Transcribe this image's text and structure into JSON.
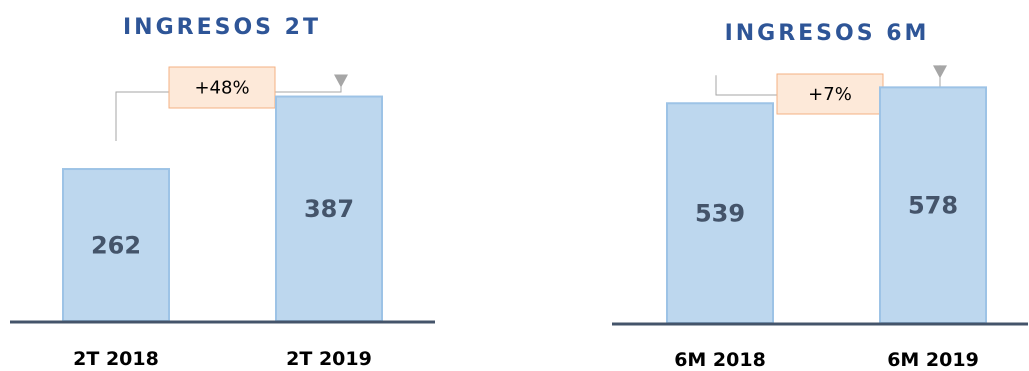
{
  "colors": {
    "title": "#2E5597",
    "bar_fill": "#BDD7EE",
    "bar_stroke": "#9DC3E6",
    "bar_text": "#44546A",
    "axis": "#44546A",
    "category_text": "#000000",
    "connector": "#A6A6A6",
    "delta_fill": "#FDE9D9",
    "delta_stroke": "#F4B183",
    "delta_text": "#000000"
  },
  "chart_data": [
    {
      "type": "bar",
      "title": "INGRESOS 2T",
      "categories": [
        "2T 2018",
        "2T 2019"
      ],
      "values": [
        262,
        387
      ],
      "value_labels": [
        "262",
        "387"
      ],
      "change_label": "+48%",
      "ylim": [
        0,
        450
      ],
      "grid": false
    },
    {
      "type": "bar",
      "title": "INGRESOS 6M",
      "categories": [
        "6M 2018",
        "6M 2019"
      ],
      "values": [
        539,
        578
      ],
      "value_labels": [
        "539",
        "578"
      ],
      "change_label": "+7%",
      "ylim": [
        0,
        650
      ],
      "grid": false
    }
  ]
}
